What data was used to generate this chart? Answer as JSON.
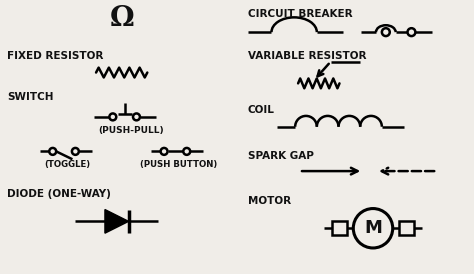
{
  "background_color": "#f0ede8",
  "text_color": "#111111",
  "labels": {
    "inductor": "Ω",
    "circuit_breaker": "CIRCUIT BREAKER",
    "fixed_resistor": "FIXED RESISTOR",
    "variable_resistor": "VARIABLE RESISTOR",
    "switch": "SWITCH",
    "push_pull": "(PUSH-PULL)",
    "toggle": "(TOGGLE)",
    "push_button": "(PUSH BUTTON)",
    "coil": "COIL",
    "spark_gap": "SPARK GAP",
    "diode": "DIODE (ONE-WAY)",
    "motor": "MOTOR"
  }
}
